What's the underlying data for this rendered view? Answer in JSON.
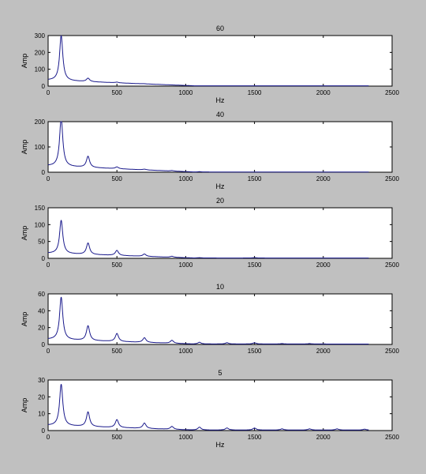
{
  "chart_data": [
    {
      "type": "line",
      "title": "60",
      "xlabel": "Hz",
      "ylabel": "Amp",
      "xlim": [
        0,
        2500
      ],
      "ylim": [
        0,
        300
      ],
      "xticks": [
        0,
        500,
        1000,
        1500,
        2000,
        2500
      ],
      "yticks": [
        0,
        100,
        200,
        300
      ],
      "grid": false,
      "series": [
        {
          "color": "#1a1a8c",
          "baseline": {
            "start": 35,
            "end": 2
          },
          "peaks": [
            {
              "x": 95,
              "y": 270
            },
            {
              "x": 290,
              "y": 22
            },
            {
              "x": 500,
              "y": 6
            },
            {
              "x": 700,
              "y": 3
            },
            {
              "x": 900,
              "y": 2
            }
          ],
          "x_end": 2330
        }
      ]
    },
    {
      "type": "line",
      "title": "40",
      "xlabel": "Hz",
      "ylabel": "Amp",
      "xlim": [
        0,
        2500
      ],
      "ylim": [
        0,
        200
      ],
      "xticks": [
        0,
        500,
        1000,
        1500,
        2000,
        2500
      ],
      "yticks": [
        0,
        100,
        200
      ],
      "grid": false,
      "series": [
        {
          "color": "#1a1a8c",
          "baseline": {
            "start": 25,
            "end": 1
          },
          "peaks": [
            {
              "x": 95,
              "y": 192
            },
            {
              "x": 290,
              "y": 45
            },
            {
              "x": 500,
              "y": 8
            },
            {
              "x": 700,
              "y": 4
            },
            {
              "x": 900,
              "y": 3
            },
            {
              "x": 1100,
              "y": 2
            }
          ],
          "x_end": 2330
        }
      ]
    },
    {
      "type": "line",
      "title": "20",
      "xlabel": "",
      "ylabel": "Amp",
      "xlim": [
        0,
        2500
      ],
      "ylim": [
        0,
        150
      ],
      "xticks": [
        0,
        500,
        1000,
        1500,
        2000,
        2500
      ],
      "yticks": [
        0,
        50,
        100,
        150
      ],
      "grid": false,
      "series": [
        {
          "color": "#1a1a8c",
          "baseline": {
            "start": 15,
            "end": 1
          },
          "peaks": [
            {
              "x": 95,
              "y": 100
            },
            {
              "x": 290,
              "y": 35
            },
            {
              "x": 500,
              "y": 16
            },
            {
              "x": 700,
              "y": 8
            },
            {
              "x": 900,
              "y": 4
            },
            {
              "x": 1100,
              "y": 2
            },
            {
              "x": 1500,
              "y": 2
            },
            {
              "x": 1700,
              "y": 1
            }
          ],
          "x_end": 2330
        }
      ]
    },
    {
      "type": "line",
      "title": "10",
      "xlabel": "",
      "ylabel": "Amp",
      "xlim": [
        0,
        2500
      ],
      "ylim": [
        0,
        60
      ],
      "xticks": [
        0,
        500,
        1000,
        1500,
        2000,
        2500
      ],
      "yticks": [
        0,
        20,
        40,
        60
      ],
      "grid": false,
      "series": [
        {
          "color": "#1a1a8c",
          "baseline": {
            "start": 6,
            "end": 0.5
          },
          "peaks": [
            {
              "x": 95,
              "y": 51
            },
            {
              "x": 290,
              "y": 18
            },
            {
              "x": 500,
              "y": 10
            },
            {
              "x": 700,
              "y": 6
            },
            {
              "x": 900,
              "y": 4
            },
            {
              "x": 1100,
              "y": 2.5
            },
            {
              "x": 1300,
              "y": 2
            },
            {
              "x": 1500,
              "y": 2
            },
            {
              "x": 1700,
              "y": 1
            },
            {
              "x": 1900,
              "y": 1
            }
          ],
          "x_end": 2330
        }
      ]
    },
    {
      "type": "line",
      "title": "5",
      "xlabel": "Hz",
      "ylabel": "Amp",
      "xlim": [
        0,
        2500
      ],
      "ylim": [
        0,
        30
      ],
      "xticks": [
        0,
        500,
        1000,
        1500,
        2000,
        2500
      ],
      "yticks": [
        0,
        10,
        20,
        30
      ],
      "grid": false,
      "series": [
        {
          "color": "#1a1a8c",
          "baseline": {
            "start": 3,
            "end": 0.3
          },
          "peaks": [
            {
              "x": 95,
              "y": 25
            },
            {
              "x": 290,
              "y": 9
            },
            {
              "x": 500,
              "y": 5
            },
            {
              "x": 700,
              "y": 3.5
            },
            {
              "x": 900,
              "y": 2
            },
            {
              "x": 1100,
              "y": 2
            },
            {
              "x": 1300,
              "y": 1.5
            },
            {
              "x": 1500,
              "y": 1.5
            },
            {
              "x": 1700,
              "y": 1
            },
            {
              "x": 1900,
              "y": 1
            },
            {
              "x": 2100,
              "y": 1
            },
            {
              "x": 2300,
              "y": 0.8
            }
          ],
          "x_end": 2330
        }
      ]
    }
  ]
}
